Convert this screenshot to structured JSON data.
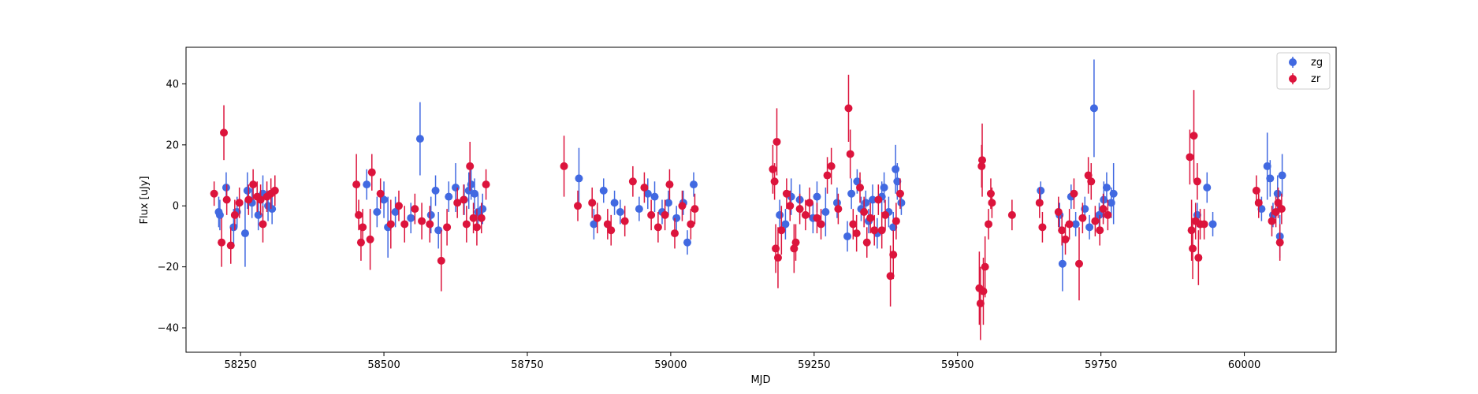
{
  "chart_data": {
    "type": "scatter",
    "title": "",
    "xlabel": "MJD",
    "ylabel": "Flux [uJy]",
    "xlim": [
      58155,
      60160
    ],
    "ylim": [
      -48,
      52
    ],
    "xticks": [
      58250,
      58500,
      58750,
      59000,
      59250,
      59500,
      59750,
      60000
    ],
    "xtick_labels": [
      "58250",
      "58500",
      "58750",
      "59000",
      "59250",
      "59500",
      "59750",
      "60000"
    ],
    "yticks": [
      -40,
      -20,
      0,
      20,
      40
    ],
    "ytick_labels": [
      "−40",
      "−20",
      "0",
      "20",
      "40"
    ],
    "grid": false,
    "legend": "top-right",
    "colors": {
      "zg": "#4169e1",
      "zr": "#dc143c"
    },
    "series": [
      {
        "name": "zg",
        "points": [
          [
            58212,
            -2,
            5
          ],
          [
            58214,
            -3,
            5
          ],
          [
            58225,
            6,
            5
          ],
          [
            58238,
            -7,
            6
          ],
          [
            58244,
            -2,
            5
          ],
          [
            58258,
            -9,
            11
          ],
          [
            58262,
            5,
            6
          ],
          [
            58270,
            1,
            5
          ],
          [
            58281,
            -3,
            5
          ],
          [
            58289,
            4,
            6
          ],
          [
            58298,
            0,
            5
          ],
          [
            58305,
            -1,
            5
          ],
          [
            58470,
            7,
            5
          ],
          [
            58488,
            -2,
            5
          ],
          [
            58500,
            2,
            6
          ],
          [
            58507,
            -7,
            10
          ],
          [
            58520,
            -2,
            5
          ],
          [
            58547,
            -4,
            5
          ],
          [
            58563,
            22,
            12
          ],
          [
            58582,
            -3,
            6
          ],
          [
            58590,
            5,
            5
          ],
          [
            58595,
            -8,
            6
          ],
          [
            58613,
            3,
            5
          ],
          [
            58625,
            6,
            8
          ],
          [
            58640,
            2,
            5
          ],
          [
            58648,
            5,
            6
          ],
          [
            58652,
            7,
            5
          ],
          [
            58658,
            4,
            5
          ],
          [
            58664,
            -2,
            6
          ],
          [
            58672,
            -1,
            5
          ],
          [
            58840,
            9,
            10
          ],
          [
            58866,
            -6,
            5
          ],
          [
            58883,
            5,
            4
          ],
          [
            58902,
            1,
            4
          ],
          [
            58912,
            -2,
            4
          ],
          [
            58945,
            -1,
            4
          ],
          [
            58960,
            4,
            5
          ],
          [
            58972,
            3,
            5
          ],
          [
            58985,
            -2,
            4
          ],
          [
            58996,
            1,
            4
          ],
          [
            59010,
            -4,
            4
          ],
          [
            59022,
            1,
            4
          ],
          [
            59029,
            -12,
            4
          ],
          [
            59040,
            7,
            4
          ],
          [
            59190,
            -3,
            5
          ],
          [
            59200,
            -6,
            5
          ],
          [
            59210,
            3,
            6
          ],
          [
            59225,
            2,
            5
          ],
          [
            59248,
            -4,
            5
          ],
          [
            59255,
            3,
            5
          ],
          [
            59270,
            -2,
            8
          ],
          [
            59290,
            1,
            5
          ],
          [
            59308,
            -10,
            5
          ],
          [
            59315,
            4,
            5
          ],
          [
            59325,
            8,
            4
          ],
          [
            59332,
            -1,
            4
          ],
          [
            59340,
            1,
            4
          ],
          [
            59345,
            -5,
            4
          ],
          [
            59352,
            2,
            5
          ],
          [
            59360,
            -9,
            5
          ],
          [
            59368,
            3,
            5
          ],
          [
            59372,
            6,
            5
          ],
          [
            59380,
            -2,
            5
          ],
          [
            59388,
            -7,
            5
          ],
          [
            59392,
            12,
            8
          ],
          [
            59395,
            8,
            6
          ],
          [
            59402,
            1,
            4
          ],
          [
            59645,
            5,
            3
          ],
          [
            59678,
            -3,
            4
          ],
          [
            59683,
            -19,
            9
          ],
          [
            59698,
            3,
            4
          ],
          [
            59706,
            -6,
            4
          ],
          [
            59722,
            -1,
            4
          ],
          [
            59730,
            -7,
            4
          ],
          [
            59738,
            32,
            16
          ],
          [
            59747,
            -3,
            4
          ],
          [
            59755,
            2,
            6
          ],
          [
            59760,
            6,
            5
          ],
          [
            59768,
            1,
            5
          ],
          [
            59772,
            4,
            10
          ],
          [
            59918,
            -3,
            4
          ],
          [
            59935,
            6,
            5
          ],
          [
            59945,
            -6,
            4
          ],
          [
            60030,
            -1,
            4
          ],
          [
            60040,
            13,
            11
          ],
          [
            60045,
            9,
            6
          ],
          [
            60050,
            -3,
            4
          ],
          [
            60058,
            4,
            6
          ],
          [
            60062,
            -10,
            7
          ],
          [
            60066,
            10,
            7
          ]
        ]
      },
      {
        "name": "zr",
        "points": [
          [
            58204,
            4,
            4
          ],
          [
            58217,
            -12,
            8
          ],
          [
            58221,
            24,
            9
          ],
          [
            58226,
            2,
            5
          ],
          [
            58233,
            -13,
            6
          ],
          [
            58240,
            -3,
            5
          ],
          [
            58248,
            1,
            5
          ],
          [
            58264,
            2,
            5
          ],
          [
            58272,
            7,
            5
          ],
          [
            58279,
            3,
            5
          ],
          [
            58285,
            2,
            5
          ],
          [
            58289,
            -6,
            6
          ],
          [
            58296,
            3,
            5
          ],
          [
            58303,
            4,
            5
          ],
          [
            58310,
            5,
            5
          ],
          [
            58452,
            7,
            10
          ],
          [
            58456,
            -3,
            5
          ],
          [
            58460,
            -12,
            6
          ],
          [
            58463,
            -7,
            6
          ],
          [
            58476,
            -11,
            10
          ],
          [
            58479,
            11,
            6
          ],
          [
            58494,
            4,
            5
          ],
          [
            58512,
            -6,
            8
          ],
          [
            58526,
            0,
            5
          ],
          [
            58536,
            -6,
            6
          ],
          [
            58554,
            -1,
            5
          ],
          [
            58566,
            -5,
            6
          ],
          [
            58580,
            -6,
            6
          ],
          [
            58600,
            -18,
            10
          ],
          [
            58610,
            -7,
            6
          ],
          [
            58628,
            1,
            5
          ],
          [
            58639,
            2,
            5
          ],
          [
            58644,
            -6,
            6
          ],
          [
            58650,
            13,
            8
          ],
          [
            58656,
            -4,
            5
          ],
          [
            58662,
            -7,
            6
          ],
          [
            58670,
            -4,
            5
          ],
          [
            58678,
            7,
            5
          ],
          [
            58814,
            13,
            10
          ],
          [
            58838,
            0,
            5
          ],
          [
            58863,
            1,
            5
          ],
          [
            58872,
            -4,
            5
          ],
          [
            58890,
            -6,
            5
          ],
          [
            58896,
            -8,
            5
          ],
          [
            58920,
            -5,
            5
          ],
          [
            58934,
            8,
            5
          ],
          [
            58954,
            6,
            5
          ],
          [
            58966,
            -3,
            5
          ],
          [
            58978,
            -7,
            5
          ],
          [
            58990,
            -3,
            5
          ],
          [
            58998,
            7,
            5
          ],
          [
            59007,
            -9,
            5
          ],
          [
            59020,
            0,
            5
          ],
          [
            59035,
            -6,
            5
          ],
          [
            59042,
            -1,
            5
          ],
          [
            59178,
            12,
            8
          ],
          [
            59181,
            8,
            6
          ],
          [
            59183,
            -14,
            8
          ],
          [
            59185,
            21,
            11
          ],
          [
            59187,
            -17,
            10
          ],
          [
            59193,
            -8,
            8
          ],
          [
            59202,
            4,
            5
          ],
          [
            59208,
            0,
            5
          ],
          [
            59215,
            -14,
            8
          ],
          [
            59218,
            -12,
            6
          ],
          [
            59225,
            -1,
            5
          ],
          [
            59235,
            -3,
            5
          ],
          [
            59242,
            1,
            5
          ],
          [
            59255,
            -4,
            5
          ],
          [
            59262,
            -6,
            5
          ],
          [
            59273,
            10,
            6
          ],
          [
            59280,
            13,
            6
          ],
          [
            59292,
            -1,
            5
          ],
          [
            59310,
            32,
            11
          ],
          [
            59313,
            17,
            8
          ],
          [
            59318,
            -6,
            5
          ],
          [
            59324,
            -9,
            6
          ],
          [
            59330,
            6,
            5
          ],
          [
            59337,
            -2,
            5
          ],
          [
            59342,
            -12,
            5
          ],
          [
            59348,
            -4,
            5
          ],
          [
            59355,
            -8,
            5
          ],
          [
            59362,
            2,
            5
          ],
          [
            59368,
            -8,
            6
          ],
          [
            59374,
            -3,
            5
          ],
          [
            59383,
            -23,
            10
          ],
          [
            59388,
            -16,
            8
          ],
          [
            59393,
            -5,
            6
          ],
          [
            59400,
            4,
            5
          ],
          [
            59538,
            -27,
            12
          ],
          [
            59540,
            -32,
            12
          ],
          [
            59542,
            13,
            7
          ],
          [
            59543,
            15,
            12
          ],
          [
            59545,
            -28,
            11
          ],
          [
            59548,
            -20,
            10
          ],
          [
            59554,
            -6,
            5
          ],
          [
            59558,
            4,
            5
          ],
          [
            59560,
            1,
            5
          ],
          [
            59595,
            -3,
            5
          ],
          [
            59643,
            1,
            5
          ],
          [
            59648,
            -7,
            5
          ],
          [
            59676,
            -2,
            5
          ],
          [
            59682,
            -8,
            5
          ],
          [
            59688,
            -11,
            5
          ],
          [
            59695,
            -6,
            5
          ],
          [
            59703,
            4,
            5
          ],
          [
            59712,
            -19,
            12
          ],
          [
            59718,
            -4,
            5
          ],
          [
            59728,
            10,
            6
          ],
          [
            59733,
            8,
            6
          ],
          [
            59740,
            -5,
            5
          ],
          [
            59748,
            -8,
            5
          ],
          [
            59754,
            -1,
            5
          ],
          [
            59762,
            -3,
            5
          ],
          [
            59905,
            16,
            9
          ],
          [
            59908,
            -8,
            10
          ],
          [
            59910,
            -14,
            10
          ],
          [
            59912,
            23,
            15
          ],
          [
            59915,
            -5,
            6
          ],
          [
            59918,
            8,
            6
          ],
          [
            59920,
            -17,
            9
          ],
          [
            59923,
            -6,
            5
          ],
          [
            59930,
            -6,
            5
          ],
          [
            60021,
            5,
            5
          ],
          [
            60025,
            1,
            5
          ],
          [
            60048,
            -5,
            5
          ],
          [
            60055,
            -2,
            5
          ],
          [
            60059,
            1,
            5
          ],
          [
            60062,
            -12,
            6
          ],
          [
            60065,
            -1,
            5
          ]
        ]
      }
    ]
  }
}
